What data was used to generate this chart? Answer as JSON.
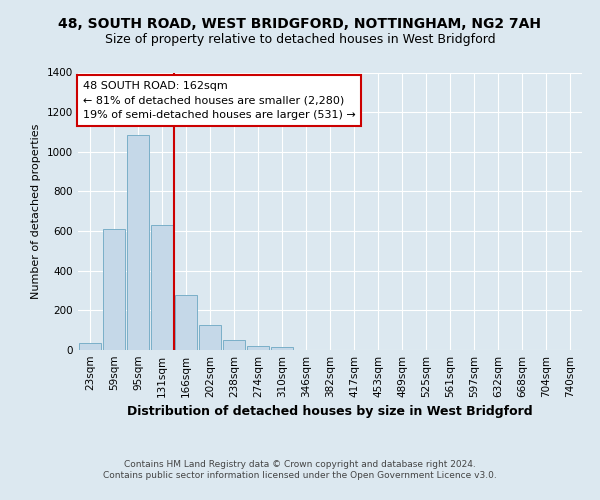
{
  "title_line1": "48, SOUTH ROAD, WEST BRIDGFORD, NOTTINGHAM, NG2 7AH",
  "title_line2": "Size of property relative to detached houses in West Bridgford",
  "xlabel": "Distribution of detached houses by size in West Bridgford",
  "ylabel": "Number of detached properties",
  "footer_line1": "Contains HM Land Registry data © Crown copyright and database right 2024.",
  "footer_line2": "Contains public sector information licensed under the Open Government Licence v3.0.",
  "categories": [
    "23sqm",
    "59sqm",
    "95sqm",
    "131sqm",
    "166sqm",
    "202sqm",
    "238sqm",
    "274sqm",
    "310sqm",
    "346sqm",
    "382sqm",
    "417sqm",
    "453sqm",
    "489sqm",
    "525sqm",
    "561sqm",
    "597sqm",
    "632sqm",
    "668sqm",
    "704sqm",
    "740sqm"
  ],
  "values": [
    35,
    610,
    1085,
    630,
    280,
    125,
    50,
    20,
    15,
    0,
    0,
    0,
    0,
    0,
    0,
    0,
    0,
    0,
    0,
    0,
    0
  ],
  "bar_color": "#c5d8e8",
  "bar_edge_color": "#7aafc8",
  "highlight_bar_index": 4,
  "highlight_color": "#cc0000",
  "annotation_title": "48 SOUTH ROAD: 162sqm",
  "annotation_line1": "← 81% of detached houses are smaller (2,280)",
  "annotation_line2": "19% of semi-detached houses are larger (531) →",
  "annotation_box_color": "#ffffff",
  "annotation_box_edge": "#cc0000",
  "ylim": [
    0,
    1400
  ],
  "yticks": [
    0,
    200,
    400,
    600,
    800,
    1000,
    1200,
    1400
  ],
  "bg_color": "#dce8f0",
  "plot_bg_color": "#dce8f0",
  "grid_color": "#ffffff",
  "title_fontsize": 10,
  "subtitle_fontsize": 9,
  "ylabel_fontsize": 8,
  "xlabel_fontsize": 9,
  "tick_fontsize": 7.5,
  "footer_fontsize": 6.5,
  "ann_fontsize": 8
}
